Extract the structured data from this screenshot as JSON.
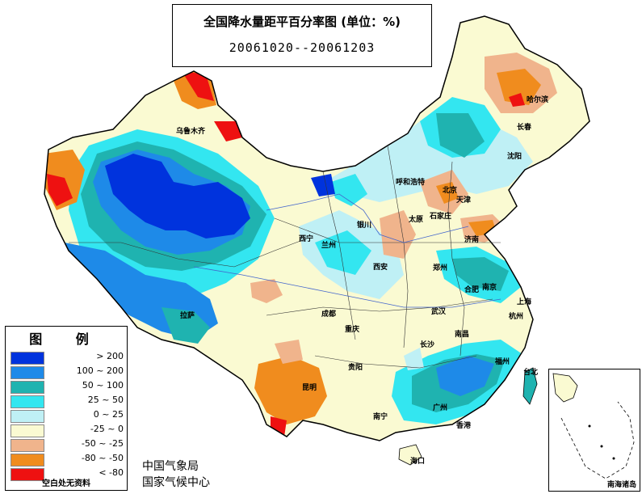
{
  "title": {
    "main": "全国降水量距平百分率图 (单位：%)",
    "period": "20061020--20061203"
  },
  "legend": {
    "heading": "图 例",
    "items": [
      {
        "label": "> 200",
        "color": "#0033dd"
      },
      {
        "label": "100 ~ 200",
        "color": "#1e8ae8"
      },
      {
        "label": "50 ~ 100",
        "color": "#1fb3b0"
      },
      {
        "label": "25 ~ 50",
        "color": "#33e6f0"
      },
      {
        "label": "0 ~ 25",
        "color": "#bff0f5"
      },
      {
        "label": "-25 ~ 0",
        "color": "#fafad2"
      },
      {
        "label": "-50 ~ -25",
        "color": "#f0b48c"
      },
      {
        "label": "-80 ~ -50",
        "color": "#f08c1e"
      },
      {
        "label": "< -80",
        "color": "#ee1111"
      }
    ],
    "note": "空白处无资料"
  },
  "agency": {
    "line1": "中国气象局",
    "line2": "国家气候中心"
  },
  "inset": {
    "label": "南海诸岛"
  },
  "cities": [
    {
      "name": "乌鲁木齐"
    },
    {
      "name": "哈尔滨"
    },
    {
      "name": "长春"
    },
    {
      "name": "沈阳"
    },
    {
      "name": "呼和浩特"
    },
    {
      "name": "北京"
    },
    {
      "name": "天津"
    },
    {
      "name": "太原"
    },
    {
      "name": "石家庄"
    },
    {
      "name": "济南"
    },
    {
      "name": "银川"
    },
    {
      "name": "兰州"
    },
    {
      "name": "西宁"
    },
    {
      "name": "西安"
    },
    {
      "name": "郑州"
    },
    {
      "name": "合肥"
    },
    {
      "name": "南京"
    },
    {
      "name": "上海"
    },
    {
      "name": "杭州"
    },
    {
      "name": "武汉"
    },
    {
      "name": "成都"
    },
    {
      "name": "重庆"
    },
    {
      "name": "拉萨"
    },
    {
      "name": "南昌"
    },
    {
      "name": "长沙"
    },
    {
      "name": "贵阳"
    },
    {
      "name": "福州"
    },
    {
      "name": "台北"
    },
    {
      "name": "昆明"
    },
    {
      "name": "南宁"
    },
    {
      "name": "广州"
    },
    {
      "name": "香港"
    },
    {
      "name": "海口"
    }
  ]
}
